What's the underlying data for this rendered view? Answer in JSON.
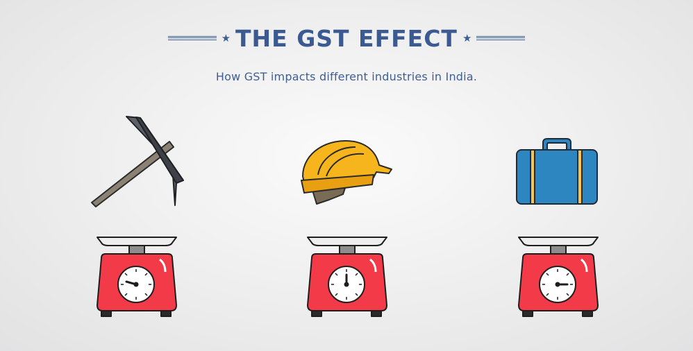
{
  "header": {
    "title": "THE GST EFFECT",
    "subtitle": "How GST impacts different industries in India."
  },
  "industries": [
    {
      "icon": "pickaxe-icon"
    },
    {
      "icon": "hard-hat-icon"
    },
    {
      "icon": "suitcase-icon"
    }
  ],
  "colors": {
    "title": "#3a5a91",
    "scale_red": "#f23a48",
    "helmet_yellow": "#f7b51d",
    "suitcase_blue": "#2e86c1"
  }
}
